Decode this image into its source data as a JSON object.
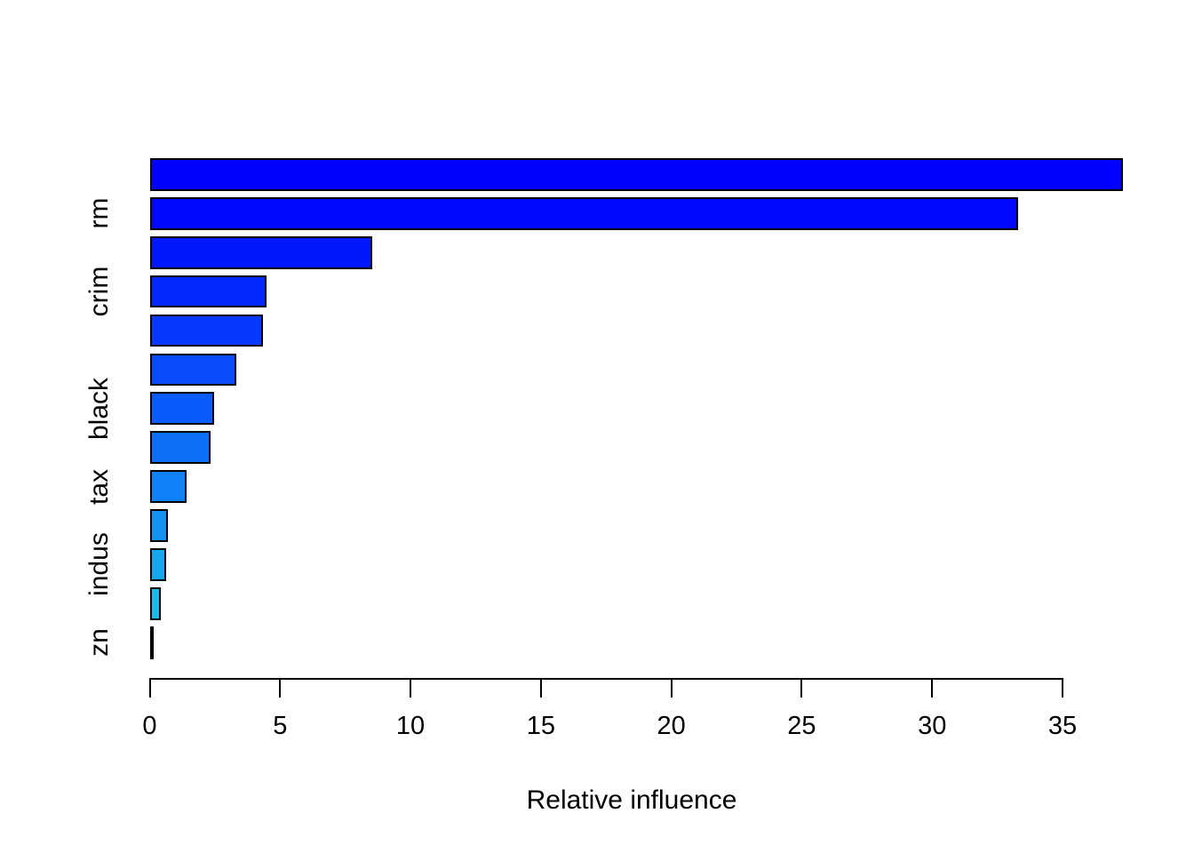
{
  "figure": {
    "background_color": "#ffffff",
    "text_color": "#000000",
    "axis_color": "#000000"
  },
  "chart_data": {
    "type": "bar",
    "orientation": "horizontal",
    "title": "",
    "xlabel": "Relative influence",
    "ylabel": "",
    "grid": false,
    "legend": false,
    "xlim": [
      0,
      37.8
    ],
    "x_ticks": [
      0,
      5,
      10,
      15,
      20,
      25,
      30,
      35
    ],
    "categories": [
      "",
      "rm",
      "",
      "crim",
      "",
      "",
      "black",
      "",
      "tax",
      "",
      "indus",
      "",
      "zn"
    ],
    "values": [
      37.3,
      33.3,
      8.53,
      4.49,
      4.35,
      3.32,
      2.46,
      2.32,
      1.41,
      0.71,
      0.64,
      0.42,
      0.16
    ],
    "bar_colors": [
      "#0000FE",
      "#0009FE",
      "#0117FE",
      "#0427FD",
      "#0638FD",
      "#084AFC",
      "#0A5CFA",
      "#0D6FF8",
      "#1081F6",
      "#1394F2",
      "#16A8EE",
      "#19BCE9",
      "#20D5E4"
    ],
    "bar_border_color": "#000000"
  }
}
